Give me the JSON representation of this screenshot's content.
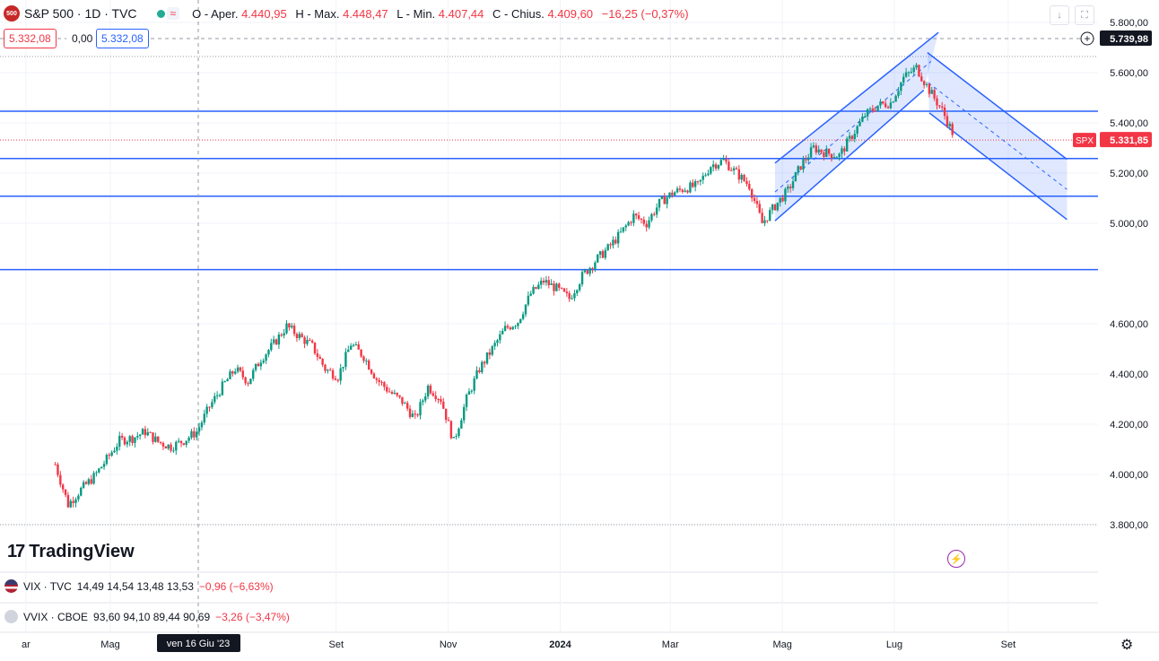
{
  "header": {
    "symbol": "S&P 500 · 1D · TVC",
    "logo_text": "500",
    "open_label": "O - Aper.",
    "open_value": "4.440,95",
    "high_label": "H - Max.",
    "high_value": "4.448,47",
    "low_label": "L - Min.",
    "low_value": "4.407,44",
    "close_label": "C - Chius.",
    "close_value": "4.409,60",
    "change_value": "−16,25 (−0,37%)",
    "sell_price": "5.332,08",
    "spread": "0,00",
    "buy_price": "5.332,08"
  },
  "brand": "TradingView",
  "indicators": [
    {
      "name": "VIX · TVC",
      "values": "14,49  14,54  13,48  13,53",
      "change": "−0,96 (−6,63%)"
    },
    {
      "name": "VVIX · CBOE",
      "values": "93,60  94,10  89,44  90,69",
      "change": "−3,26 (−3,47%)"
    }
  ],
  "colors": {
    "up": "#089981",
    "down": "#f23645",
    "line": "#2962ff",
    "channel_fill": "#2962ff"
  },
  "icons": [
    "down-arrow-icon",
    "fullscreen-icon",
    "plus-circle-icon",
    "lightning-icon",
    "gear-icon"
  ],
  "chart_data": {
    "type": "candlestick",
    "symbol": "SPX",
    "last_price": "5.331,85",
    "crosshair_date": "ven 16 Giu '23",
    "crosshair_price": "5.739,98",
    "ylim": [
      3700,
      5850
    ],
    "y_ticks": [
      "3.800,00",
      "4.000,00",
      "4.200,00",
      "4.400,00",
      "4.600,00",
      "5.000,00",
      "5.200,00",
      "5.400,00",
      "5.600,00",
      "5.800,00"
    ],
    "y_tick_values": [
      3800,
      4000,
      4200,
      4400,
      4600,
      5000,
      5200,
      5400,
      5600,
      5800
    ],
    "x_ticks": [
      "ar",
      "Mag",
      "Set",
      "Nov",
      "2024",
      "Mar",
      "Mag",
      "Lug",
      "Set"
    ],
    "x_tick_days": [
      -16,
      30,
      153,
      214,
      275,
      335,
      396,
      457,
      519
    ],
    "horizontal_levels": [
      {
        "value": 5446.57,
        "label": "5.446,57"
      },
      {
        "value": 5258.13,
        "label": "5.258,13"
      },
      {
        "value": 5107.96,
        "label": "5.107,96"
      },
      {
        "value": 4815.63,
        "label": "4.815,63"
      }
    ],
    "channels": [
      {
        "name": "rising",
        "lower_start": [
          "2024-04-22",
          5010
        ],
        "lower_end": [
          "2024-07-12",
          5530
        ],
        "upper_start": [
          "2024-04-22",
          5240
        ],
        "upper_end": [
          "2024-07-20",
          5760
        ]
      },
      {
        "name": "falling",
        "upper_start": [
          "2024-07-14",
          5680
        ],
        "upper_end": [
          "2024-09-28",
          5255
        ],
        "lower_start": [
          "2024-07-15",
          5440
        ],
        "lower_end": [
          "2024-09-28",
          5015
        ]
      }
    ],
    "closes_weekly": [
      [
        "2023-03-27",
        4040
      ],
      [
        "2023-04-03",
        3880
      ],
      [
        "2023-04-10",
        3940
      ],
      [
        "2023-04-17",
        3990
      ],
      [
        "2023-04-24",
        4060
      ],
      [
        "2023-05-01",
        4135
      ],
      [
        "2023-05-08",
        4145
      ],
      [
        "2023-05-15",
        4170
      ],
      [
        "2023-05-22",
        4130
      ],
      [
        "2023-05-29",
        4110
      ],
      [
        "2023-06-05",
        4135
      ],
      [
        "2023-06-12",
        4170
      ],
      [
        "2023-06-19",
        4270
      ],
      [
        "2023-06-26",
        4350
      ],
      [
        "2023-07-03",
        4420
      ],
      [
        "2023-07-10",
        4370
      ],
      [
        "2023-07-17",
        4460
      ],
      [
        "2023-07-24",
        4520
      ],
      [
        "2023-07-31",
        4590
      ],
      [
        "2023-08-07",
        4550
      ],
      [
        "2023-08-14",
        4510
      ],
      [
        "2023-08-21",
        4420
      ],
      [
        "2023-08-28",
        4390
      ],
      [
        "2023-09-04",
        4520
      ],
      [
        "2023-09-11",
        4470
      ],
      [
        "2023-09-18",
        4380
      ],
      [
        "2023-09-25",
        4330
      ],
      [
        "2023-10-02",
        4290
      ],
      [
        "2023-10-09",
        4220
      ],
      [
        "2023-10-16",
        4350
      ],
      [
        "2023-10-23",
        4300
      ],
      [
        "2023-10-30",
        4130
      ],
      [
        "2023-11-06",
        4300
      ],
      [
        "2023-11-13",
        4420
      ],
      [
        "2023-11-20",
        4500
      ],
      [
        "2023-11-27",
        4580
      ],
      [
        "2023-12-04",
        4610
      ],
      [
        "2023-12-11",
        4720
      ],
      [
        "2023-12-18",
        4770
      ],
      [
        "2023-12-25",
        4740
      ],
      [
        "2024-01-01",
        4700
      ],
      [
        "2024-01-08",
        4790
      ],
      [
        "2024-01-15",
        4850
      ],
      [
        "2024-01-22",
        4900
      ],
      [
        "2024-01-29",
        4960
      ],
      [
        "2024-02-05",
        5030
      ],
      [
        "2024-02-12",
        5000
      ],
      [
        "2024-02-19",
        5080
      ],
      [
        "2024-02-26",
        5120
      ],
      [
        "2024-03-04",
        5140
      ],
      [
        "2024-03-11",
        5150
      ],
      [
        "2024-03-18",
        5230
      ],
      [
        "2024-03-25",
        5250
      ],
      [
        "2024-04-01",
        5200
      ],
      [
        "2024-04-08",
        5150
      ],
      [
        "2024-04-15",
        5000
      ],
      [
        "2024-04-22",
        5070
      ],
      [
        "2024-04-29",
        5130
      ],
      [
        "2024-05-06",
        5230
      ],
      [
        "2024-05-13",
        5300
      ],
      [
        "2024-05-20",
        5280
      ],
      [
        "2024-05-27",
        5270
      ],
      [
        "2024-06-03",
        5350
      ],
      [
        "2024-06-10",
        5430
      ],
      [
        "2024-06-17",
        5470
      ],
      [
        "2024-06-24",
        5480
      ],
      [
        "2024-07-01",
        5580
      ],
      [
        "2024-07-08",
        5620
      ],
      [
        "2024-07-15",
        5530
      ],
      [
        "2024-07-22",
        5450
      ],
      [
        "2024-07-29",
        5340
      ]
    ]
  }
}
